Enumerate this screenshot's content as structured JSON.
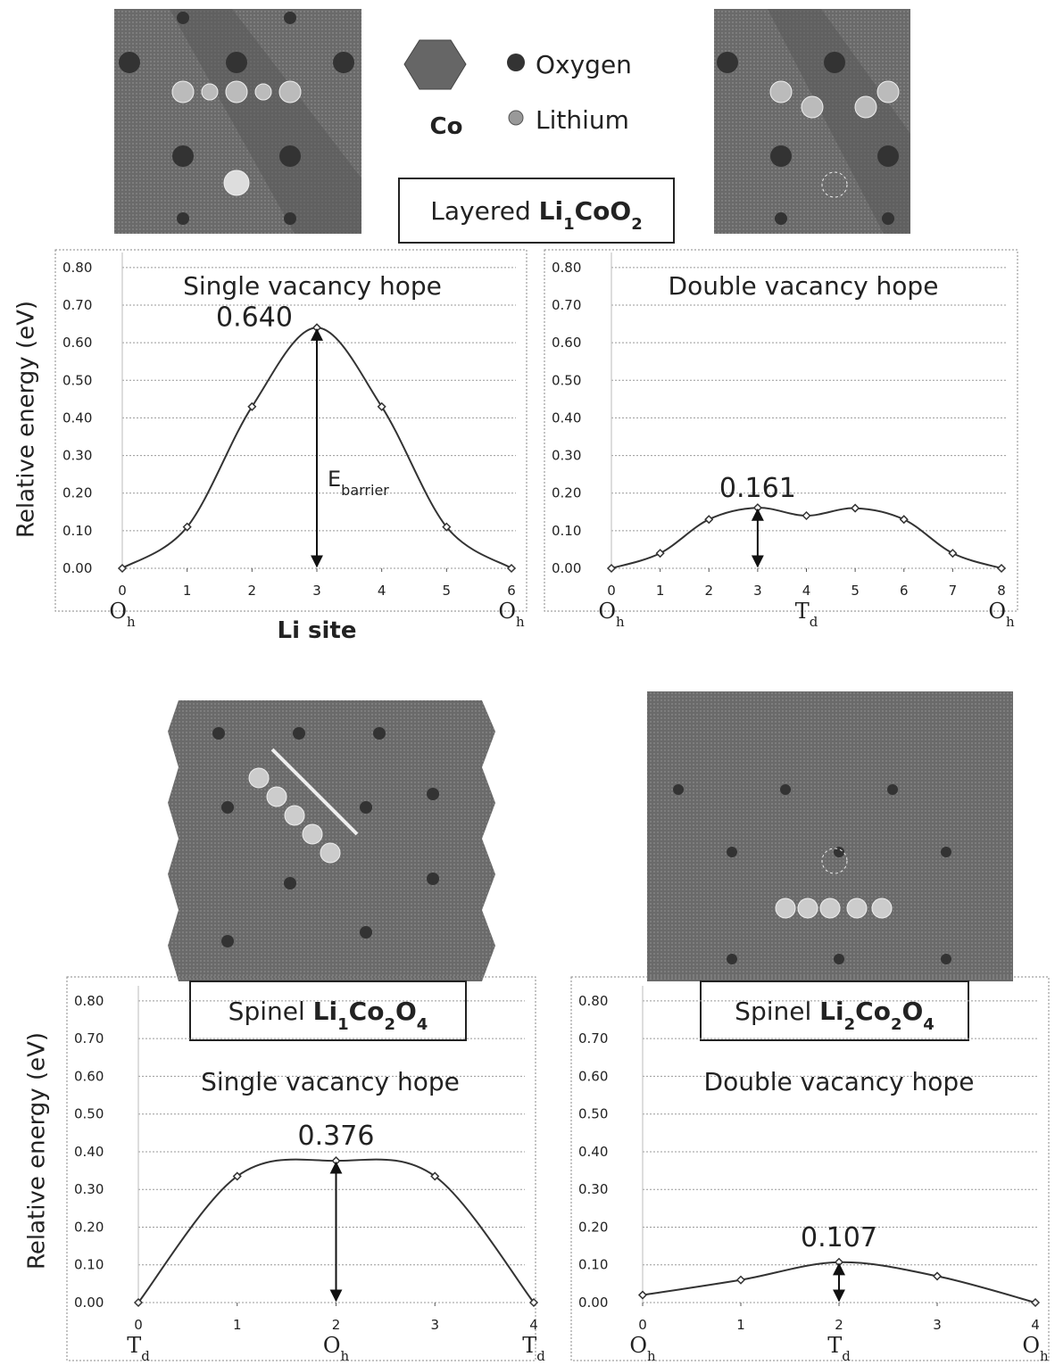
{
  "legend": {
    "co": "Co",
    "oxygen": "Oxygen",
    "lithium": "Lithium"
  },
  "structure_labels": [
    [
      {
        "t": "Layered "
      },
      {
        "t": "Li",
        "b": true
      },
      {
        "t": "1",
        "b": true,
        "sub": true
      },
      {
        "t": "CoO",
        "b": true
      },
      {
        "t": "2",
        "b": true,
        "sub": true
      }
    ],
    [
      {
        "t": "Spinel "
      },
      {
        "t": "Li",
        "b": true
      },
      {
        "t": "1",
        "b": true,
        "sub": true
      },
      {
        "t": "Co",
        "b": true
      },
      {
        "t": "2",
        "b": true,
        "sub": true
      },
      {
        "t": "O",
        "b": true
      },
      {
        "t": "4",
        "b": true,
        "sub": true
      }
    ],
    [
      {
        "t": "Spinel "
      },
      {
        "t": "Li",
        "b": true
      },
      {
        "t": "2",
        "b": true,
        "sub": true
      },
      {
        "t": "Co",
        "b": true
      },
      {
        "t": "2",
        "b": true,
        "sub": true
      },
      {
        "t": "O",
        "b": true
      },
      {
        "t": "4",
        "b": true,
        "sub": true
      }
    ]
  ],
  "chart_data": [
    {
      "type": "line",
      "title": "Single vacancy hope",
      "ylabel": "Relative energy (eV)",
      "xlabel": "Li site",
      "color": "#333",
      "grid": true,
      "x": [
        0,
        1,
        2,
        3,
        4,
        5,
        6
      ],
      "values": [
        0,
        0.11,
        0.43,
        0.64,
        0.43,
        0.11,
        0
      ],
      "peak_label": "0.640",
      "barrier_label": {
        "t": "E",
        "sub": "barrier"
      },
      "xlim": [
        0,
        6
      ],
      "xticks": [
        0,
        1,
        2,
        3,
        4,
        5,
        6
      ],
      "ylim": [
        0,
        0.84
      ],
      "yticks": [
        {
          "value": 0,
          "label": "0.00"
        },
        {
          "value": 0.1,
          "label": "0.10"
        },
        {
          "value": 0.2,
          "label": "0.20"
        },
        {
          "value": 0.3,
          "label": "0.30"
        },
        {
          "value": 0.4,
          "label": "0.40"
        },
        {
          "value": 0.5,
          "label": "0.50"
        },
        {
          "value": 0.6,
          "label": "0.60"
        },
        {
          "value": 0.7,
          "label": "0.70"
        },
        {
          "value": 0.8,
          "label": "0.80"
        }
      ],
      "site_labels": [
        {
          "x": 0,
          "label": "O",
          "sub": "h"
        },
        {
          "x": 6,
          "label": "O",
          "sub": "h"
        }
      ]
    },
    {
      "type": "line",
      "title": "Double vacancy hope",
      "color": "#333",
      "grid": true,
      "x": [
        0,
        1,
        2,
        3,
        4,
        5,
        6,
        7,
        8
      ],
      "values": [
        0,
        0.04,
        0.13,
        0.161,
        0.14,
        0.16,
        0.13,
        0.04,
        0
      ],
      "peak_label": "0.161",
      "xlim": [
        0,
        8
      ],
      "xticks": [
        0,
        1,
        2,
        3,
        4,
        5,
        6,
        7,
        8
      ],
      "ylim": [
        0,
        0.84
      ],
      "yticks": [
        {
          "value": 0,
          "label": "0.00"
        },
        {
          "value": 0.1,
          "label": "0.10"
        },
        {
          "value": 0.2,
          "label": "0.20"
        },
        {
          "value": 0.3,
          "label": "0.30"
        },
        {
          "value": 0.4,
          "label": "0.40"
        },
        {
          "value": 0.5,
          "label": "0.50"
        },
        {
          "value": 0.6,
          "label": "0.60"
        },
        {
          "value": 0.7,
          "label": "0.70"
        },
        {
          "value": 0.8,
          "label": "0.80"
        }
      ],
      "site_labels": [
        {
          "x": 0,
          "label": "O",
          "sub": "h"
        },
        {
          "x": 4,
          "label": "T",
          "sub": "d"
        },
        {
          "x": 8,
          "label": "O",
          "sub": "h"
        }
      ]
    },
    {
      "type": "line",
      "title": "Single vacancy hope",
      "ylabel": "Relative energy (eV)",
      "color": "#333",
      "grid": true,
      "x": [
        0,
        1,
        2,
        3,
        4
      ],
      "values": [
        0,
        0.335,
        0.376,
        0.335,
        0
      ],
      "peak_label": "0.376",
      "xlim": [
        0,
        4
      ],
      "xticks": [
        0,
        1,
        2,
        3,
        4
      ],
      "ylim": [
        0,
        0.84
      ],
      "yticks": [
        {
          "value": 0,
          "label": "0.00"
        },
        {
          "value": 0.1,
          "label": "0.10"
        },
        {
          "value": 0.2,
          "label": "0.20"
        },
        {
          "value": 0.3,
          "label": "0.30"
        },
        {
          "value": 0.4,
          "label": "0.40"
        },
        {
          "value": 0.5,
          "label": "0.50"
        },
        {
          "value": 0.6,
          "label": "0.60"
        },
        {
          "value": 0.7,
          "label": "0.70"
        },
        {
          "value": 0.8,
          "label": "0.80"
        }
      ],
      "site_labels": [
        {
          "x": 0,
          "label": "T",
          "sub": "d"
        },
        {
          "x": 2,
          "label": "O",
          "sub": "h"
        },
        {
          "x": 4,
          "label": "T",
          "sub": "d"
        }
      ]
    },
    {
      "type": "line",
      "title": "Double vacancy hope",
      "color": "#333",
      "grid": true,
      "x": [
        0,
        1,
        2,
        3,
        4
      ],
      "values": [
        0.02,
        0.06,
        0.107,
        0.07,
        0
      ],
      "peak_label": "0.107",
      "xlim": [
        0,
        4
      ],
      "xticks": [
        0,
        1,
        2,
        3,
        4
      ],
      "ylim": [
        0,
        0.84
      ],
      "yticks": [
        {
          "value": 0,
          "label": "0.00"
        },
        {
          "value": 0.1,
          "label": "0.10"
        },
        {
          "value": 0.2,
          "label": "0.20"
        },
        {
          "value": 0.3,
          "label": "0.30"
        },
        {
          "value": 0.4,
          "label": "0.40"
        },
        {
          "value": 0.5,
          "label": "0.50"
        },
        {
          "value": 0.6,
          "label": "0.60"
        },
        {
          "value": 0.7,
          "label": "0.70"
        },
        {
          "value": 0.8,
          "label": "0.80"
        }
      ],
      "site_labels": [
        {
          "x": 0,
          "label": "O",
          "sub": "h"
        },
        {
          "x": 2,
          "label": "T",
          "sub": "d"
        },
        {
          "x": 4,
          "label": "O",
          "sub": "h"
        }
      ]
    }
  ]
}
